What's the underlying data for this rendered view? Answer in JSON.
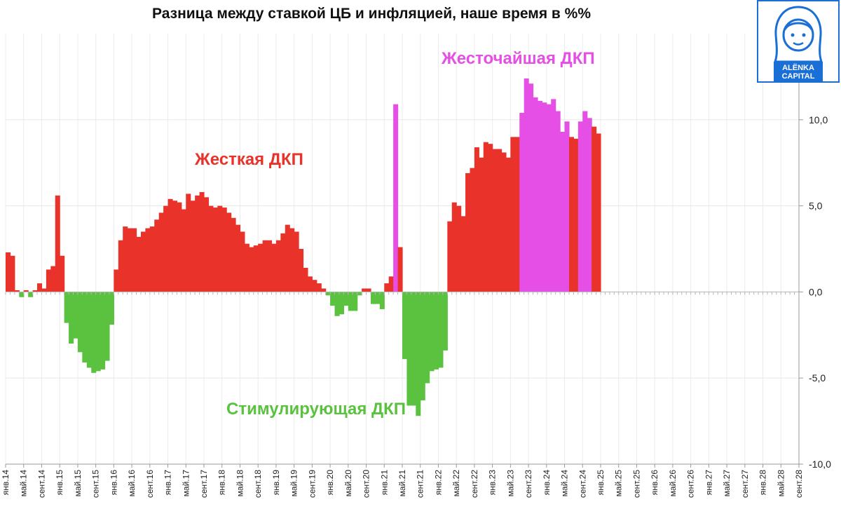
{
  "chart_data": {
    "type": "bar",
    "title": "Разница между ставкой ЦБ и инфляцией, наше время в %%",
    "ylim": [
      -10,
      15
    ],
    "yticks": [
      {
        "value": 10,
        "label": "10,0"
      },
      {
        "value": 5,
        "label": "5,0"
      },
      {
        "value": 0,
        "label": "0,0"
      },
      {
        "value": -5,
        "label": "-5,0"
      },
      {
        "value": -10,
        "label": "-10,0"
      }
    ],
    "xtick_labels": [
      "янв.14",
      "май.14",
      "сент.14",
      "янв.15",
      "май.15",
      "сент.15",
      "янв.16",
      "май.16",
      "сент.16",
      "янв.17",
      "май.17",
      "сент.17",
      "янв.18",
      "май.18",
      "сент.18",
      "янв.19",
      "май.19",
      "сент.19",
      "янв.20",
      "май.20",
      "сент.20",
      "янв.21",
      "май.21",
      "сент.21",
      "янв.22",
      "май.22",
      "сент.22",
      "янв.23",
      "май.23",
      "сент.23",
      "янв.24",
      "май.24",
      "сент.24",
      "янв.25",
      "май.25",
      "сент.25",
      "янв.26",
      "май.26",
      "сент.26",
      "янв.27",
      "май.27",
      "сент.27",
      "янв.28",
      "май.28",
      "сент.28"
    ],
    "grid": true,
    "colors": {
      "tight": "#e8322a",
      "stimulating": "#5ac23f",
      "tightest": "#e64fe6"
    },
    "start_month": "янв.14",
    "values": [
      2.3,
      2.1,
      0.1,
      -0.3,
      0.1,
      -0.3,
      0.1,
      0.5,
      0.2,
      1.3,
      1.5,
      5.6,
      2.1,
      -1.8,
      -3.0,
      -2.7,
      -3.5,
      -4.1,
      -4.4,
      -4.7,
      -4.6,
      -4.5,
      -4.0,
      -1.9,
      1.3,
      3.0,
      3.8,
      3.7,
      3.7,
      3.2,
      3.5,
      3.7,
      3.8,
      4.2,
      4.6,
      5.0,
      5.4,
      5.3,
      5.2,
      4.8,
      5.7,
      5.3,
      5.6,
      5.8,
      5.5,
      5.0,
      4.9,
      5.0,
      4.9,
      4.6,
      4.3,
      3.9,
      3.5,
      2.8,
      2.6,
      2.7,
      2.8,
      3.0,
      3.0,
      2.8,
      3.0,
      3.4,
      3.9,
      3.7,
      3.5,
      2.5,
      1.4,
      0.9,
      0.7,
      0.5,
      0.2,
      -0.2,
      -0.8,
      -1.4,
      -1.3,
      -0.8,
      -1.1,
      -1.1,
      -0.2,
      0.2,
      0.2,
      -0.7,
      -0.7,
      -1.0,
      0.5,
      0.9,
      10.9,
      2.6,
      -3.9,
      -6.6,
      -6.6,
      -7.2,
      -6.3,
      -5.3,
      -4.6,
      -4.5,
      -4.4,
      -3.4,
      4.1,
      5.2,
      5.0,
      4.4,
      6.9,
      7.2,
      8.4,
      7.8,
      8.7,
      8.6,
      8.3,
      8.3,
      8.1,
      7.8,
      9.0,
      9.0,
      10.4,
      12.4,
      12.1,
      11.3,
      11.1,
      11.0,
      10.9,
      11.2,
      10.5,
      9.3,
      9.9,
      9.0,
      8.9,
      9.9,
      10.5,
      10.1,
      9.6,
      9.2
    ],
    "categories": [
      "tight",
      "tight",
      "tight",
      "stimulating",
      "tight",
      "stimulating",
      "tight",
      "tight",
      "tight",
      "tight",
      "tight",
      "tight",
      "tight",
      "stimulating",
      "stimulating",
      "stimulating",
      "stimulating",
      "stimulating",
      "stimulating",
      "stimulating",
      "stimulating",
      "stimulating",
      "stimulating",
      "stimulating",
      "tight",
      "tight",
      "tight",
      "tight",
      "tight",
      "tight",
      "tight",
      "tight",
      "tight",
      "tight",
      "tight",
      "tight",
      "tight",
      "tight",
      "tight",
      "tight",
      "tight",
      "tight",
      "tight",
      "tight",
      "tight",
      "tight",
      "tight",
      "tight",
      "tight",
      "tight",
      "tight",
      "tight",
      "tight",
      "tight",
      "tight",
      "tight",
      "tight",
      "tight",
      "tight",
      "tight",
      "tight",
      "tight",
      "tight",
      "tight",
      "tight",
      "tight",
      "tight",
      "tight",
      "tight",
      "tight",
      "tight",
      "stimulating",
      "stimulating",
      "stimulating",
      "stimulating",
      "stimulating",
      "stimulating",
      "stimulating",
      "stimulating",
      "tight",
      "tight",
      "stimulating",
      "stimulating",
      "stimulating",
      "tight",
      "tight",
      "tightest",
      "tight",
      "stimulating",
      "stimulating",
      "stimulating",
      "stimulating",
      "stimulating",
      "stimulating",
      "stimulating",
      "stimulating",
      "stimulating",
      "stimulating",
      "tight",
      "tight",
      "tight",
      "tight",
      "tight",
      "tight",
      "tight",
      "tight",
      "tight",
      "tight",
      "tight",
      "tight",
      "tight",
      "tight",
      "tight",
      "tight",
      "tightest",
      "tightest",
      "tightest",
      "tightest",
      "tightest",
      "tightest",
      "tightest",
      "tightest",
      "tightest",
      "tightest",
      "tightest",
      "tight",
      "tight",
      "tightest",
      "tightest",
      "tightest",
      "tight",
      "tight"
    ],
    "annotations": [
      {
        "text": "Жесточайшая ДКП",
        "category": "tightest"
      },
      {
        "text": "Жесткая ДКП",
        "category": "tight"
      },
      {
        "text": "Стимулирующая ДКП",
        "category": "stimulating"
      }
    ]
  },
  "logo": {
    "text_line1": "ALËNKA",
    "text_line2": "CAPITAL",
    "color": "#1a6fd6"
  }
}
